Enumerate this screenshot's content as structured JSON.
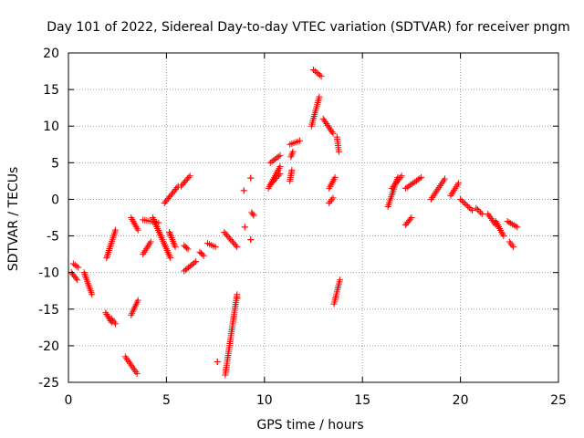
{
  "chart_data": {
    "type": "scatter",
    "title": "Day 101 of 2022, Sidereal Day-to-day VTEC variation (SDTVAR) for receiver pngm",
    "xlabel": "GPS time / hours",
    "ylabel": "SDTVAR / TECUs",
    "xlim": [
      0,
      25
    ],
    "ylim": [
      -25,
      20
    ],
    "grid": true,
    "marker": "+",
    "series_color": "#ff0000",
    "x_ticks": [
      0,
      5,
      10,
      15,
      20,
      25
    ],
    "y_ticks": [
      -25,
      -20,
      -15,
      -10,
      -5,
      0,
      5,
      10,
      15,
      20
    ],
    "segments": [
      {
        "x": [
          0.15,
          0.45
        ],
        "y": [
          -10.0,
          -11.0
        ]
      },
      {
        "x": [
          0.25,
          0.5
        ],
        "y": [
          -8.8,
          -9.3
        ]
      },
      {
        "x": [
          0.8,
          1.2
        ],
        "y": [
          -10.0,
          -13.0
        ]
      },
      {
        "x": [
          1.9,
          2.2
        ],
        "y": [
          -15.5,
          -16.8
        ]
      },
      {
        "x": [
          2.2,
          2.4
        ],
        "y": [
          -16.3,
          -17.0
        ]
      },
      {
        "x": [
          1.95,
          2.4
        ],
        "y": [
          -8.0,
          -4.2
        ]
      },
      {
        "x": [
          2.9,
          3.5
        ],
        "y": [
          -21.5,
          -23.8
        ]
      },
      {
        "x": [
          3.2,
          3.55
        ],
        "y": [
          -15.8,
          -13.8
        ]
      },
      {
        "x": [
          3.2,
          3.55
        ],
        "y": [
          -2.5,
          -4.2
        ]
      },
      {
        "x": [
          3.8,
          4.2
        ],
        "y": [
          -7.5,
          -5.8
        ]
      },
      {
        "x": [
          3.8,
          4.6
        ],
        "y": [
          -2.8,
          -3.2
        ]
      },
      {
        "x": [
          4.3,
          5.2
        ],
        "y": [
          -2.5,
          -8.0
        ]
      },
      {
        "x": [
          4.9,
          5.6
        ],
        "y": [
          -0.5,
          1.8
        ]
      },
      {
        "x": [
          5.15,
          5.45
        ],
        "y": [
          -4.5,
          -6.5
        ]
      },
      {
        "x": [
          5.75,
          6.2
        ],
        "y": [
          1.8,
          3.2
        ]
      },
      {
        "x": [
          5.9,
          6.1
        ],
        "y": [
          -6.3,
          -6.8
        ]
      },
      {
        "x": [
          5.9,
          6.5
        ],
        "y": [
          -9.8,
          -8.5
        ]
      },
      {
        "x": [
          6.7,
          6.9
        ],
        "y": [
          -7.2,
          -7.7
        ]
      },
      {
        "x": [
          7.1,
          7.5
        ],
        "y": [
          -6.0,
          -6.5
        ]
      },
      {
        "x": [
          7.6,
          7.6
        ],
        "y": [
          -22.2,
          -22.2
        ]
      },
      {
        "x": [
          8.0,
          8.6
        ],
        "y": [
          -24.0,
          -13.0
        ]
      },
      {
        "x": [
          7.95,
          8.6
        ],
        "y": [
          -4.5,
          -6.5
        ]
      },
      {
        "x": [
          8.6,
          8.6
        ],
        "y": [
          -13.5,
          -13.5
        ]
      },
      {
        "x": [
          9.0,
          9.0
        ],
        "y": [
          -3.8,
          -3.8
        ]
      },
      {
        "x": [
          8.95,
          8.95
        ],
        "y": [
          1.2,
          1.2
        ]
      },
      {
        "x": [
          9.3,
          9.3
        ],
        "y": [
          -5.5,
          -5.5
        ]
      },
      {
        "x": [
          9.3,
          9.3
        ],
        "y": [
          2.9,
          2.9
        ]
      },
      {
        "x": [
          9.35,
          9.45
        ],
        "y": [
          -1.8,
          -2.2
        ]
      },
      {
        "x": [
          10.2,
          10.8
        ],
        "y": [
          1.5,
          4.5
        ]
      },
      {
        "x": [
          10.3,
          10.8
        ],
        "y": [
          5.0,
          6.0
        ]
      },
      {
        "x": [
          10.3,
          10.8
        ],
        "y": [
          2.0,
          3.5
        ]
      },
      {
        "x": [
          11.3,
          11.4
        ],
        "y": [
          2.5,
          4.0
        ]
      },
      {
        "x": [
          11.35,
          11.45
        ],
        "y": [
          5.8,
          6.5
        ]
      },
      {
        "x": [
          11.3,
          11.8
        ],
        "y": [
          7.5,
          8.0
        ]
      },
      {
        "x": [
          12.4,
          12.8
        ],
        "y": [
          10.0,
          14.0
        ]
      },
      {
        "x": [
          12.5,
          12.9
        ],
        "y": [
          17.7,
          16.8
        ]
      },
      {
        "x": [
          13.0,
          13.5
        ],
        "y": [
          11.0,
          9.0
        ]
      },
      {
        "x": [
          13.3,
          13.6
        ],
        "y": [
          1.5,
          3.0
        ]
      },
      {
        "x": [
          13.3,
          13.5
        ],
        "y": [
          -0.5,
          0.2
        ]
      },
      {
        "x": [
          13.7,
          13.8
        ],
        "y": [
          8.5,
          6.5
        ]
      },
      {
        "x": [
          13.55,
          13.85
        ],
        "y": [
          -14.3,
          -11.0
        ]
      },
      {
        "x": [
          16.3,
          16.8
        ],
        "y": [
          -1.0,
          3.0
        ]
      },
      {
        "x": [
          16.5,
          17.0
        ],
        "y": [
          1.5,
          3.2
        ]
      },
      {
        "x": [
          17.2,
          17.5
        ],
        "y": [
          -3.5,
          -2.5
        ]
      },
      {
        "x": [
          17.2,
          18.0
        ],
        "y": [
          1.5,
          3.0
        ]
      },
      {
        "x": [
          18.5,
          19.2
        ],
        "y": [
          0.0,
          2.8
        ]
      },
      {
        "x": [
          19.5,
          19.9
        ],
        "y": [
          0.5,
          2.2
        ]
      },
      {
        "x": [
          20.0,
          20.6
        ],
        "y": [
          0.0,
          -1.5
        ]
      },
      {
        "x": [
          20.8,
          21.1
        ],
        "y": [
          -1.2,
          -2.0
        ]
      },
      {
        "x": [
          21.4,
          21.8
        ],
        "y": [
          -2.0,
          -3.5
        ]
      },
      {
        "x": [
          21.8,
          22.2
        ],
        "y": [
          -3.0,
          -5.0
        ]
      },
      {
        "x": [
          22.4,
          22.9
        ],
        "y": [
          -3.0,
          -3.8
        ]
      },
      {
        "x": [
          22.5,
          22.7
        ],
        "y": [
          -5.8,
          -6.5
        ]
      }
    ]
  }
}
